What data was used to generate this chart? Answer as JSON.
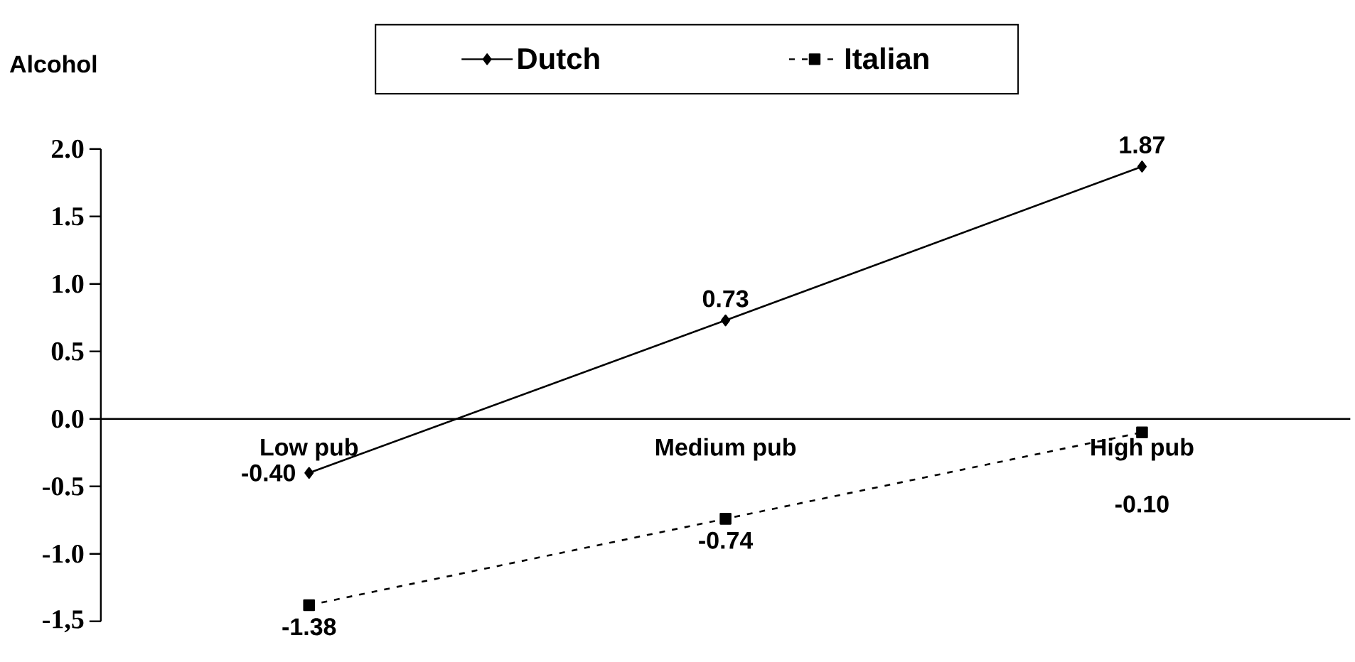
{
  "chart_data": {
    "type": "line",
    "ylabel": "Alcohol",
    "categories": [
      "Low pub",
      "Medium pub",
      "High pub"
    ],
    "series": [
      {
        "name": "Dutch",
        "color": "#000000",
        "values": [
          -0.4,
          0.73,
          1.87
        ],
        "marker": "diamond",
        "line_style": "solid",
        "value_labels": [
          "-0.40",
          "0.73",
          "1.87"
        ]
      },
      {
        "name": "Italian",
        "color": "#000000",
        "values": [
          -1.38,
          -0.74,
          -0.1
        ],
        "marker": "square",
        "line_style": "dashed",
        "value_labels": [
          "-1.38",
          "-0.74",
          "-0.10"
        ]
      }
    ],
    "ylim": [
      -1.5,
      2.0
    ],
    "yticks": [
      {
        "value": 2.0,
        "label": "2.0"
      },
      {
        "value": 1.5,
        "label": "1.5"
      },
      {
        "value": 1.0,
        "label": "1.0"
      },
      {
        "value": 0.5,
        "label": "0.5"
      },
      {
        "value": 0.0,
        "label": "0.0"
      },
      {
        "value": -0.5,
        "label": "-0.5"
      },
      {
        "value": -1.0,
        "label": "-1.0"
      },
      {
        "value": -1.5,
        "label": "-1,5"
      }
    ],
    "grid": false,
    "legend": "top"
  }
}
